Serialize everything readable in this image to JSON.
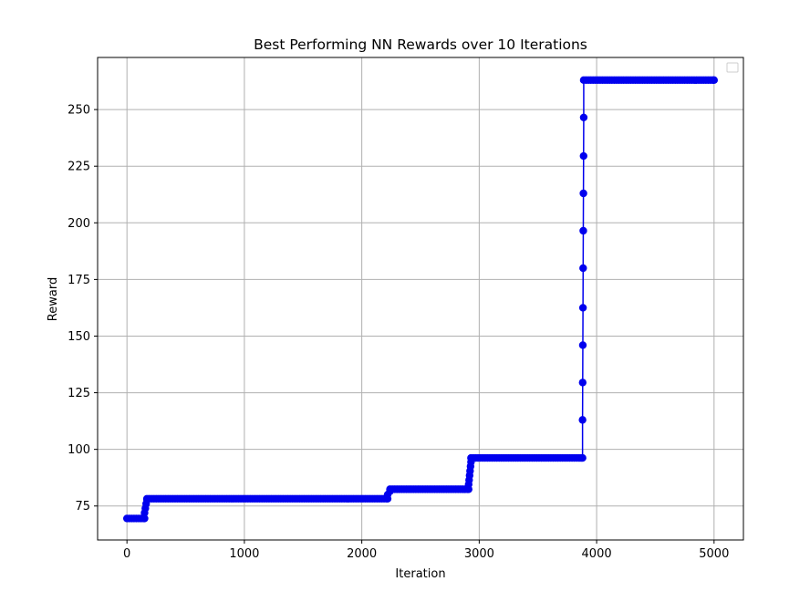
{
  "chart_data": {
    "type": "line",
    "title": "Best Performing NN Rewards over 10 Iterations",
    "xlabel": "Iteration",
    "ylabel": "Reward",
    "xlim": [
      -250,
      5250
    ],
    "ylim": [
      60,
      273
    ],
    "x_ticks": [
      0,
      1000,
      2000,
      3000,
      4000,
      5000
    ],
    "y_ticks": [
      75,
      100,
      125,
      150,
      175,
      200,
      225,
      250
    ],
    "grid": true,
    "legend": {
      "placement": "top-right",
      "entries": []
    },
    "series": [
      {
        "color": "#0000ee",
        "marker": "circle",
        "segments": [
          {
            "x_start": 0,
            "x_end": 150,
            "y": 69.5
          },
          {
            "x_start": 150,
            "x_end": 170,
            "y_values": [
              72,
              74,
              76,
              78
            ]
          },
          {
            "x_start": 170,
            "x_end": 2220,
            "y": 78.2
          },
          {
            "x_start": 2220,
            "x_end": 2240,
            "y_values": [
              80,
              81.5
            ]
          },
          {
            "x_start": 2240,
            "x_end": 2910,
            "y": 82.4
          },
          {
            "x_start": 2910,
            "x_end": 2930,
            "y_values": [
              84.5,
              86.5,
              88.5,
              90.5,
              92.5,
              94.5
            ]
          },
          {
            "x_start": 2930,
            "x_end": 3880,
            "y": 96.2
          },
          {
            "x_start": 3880,
            "x_end": 3890,
            "y_values": [
              113,
              129.5,
              146,
              162.5,
              180,
              196.5,
              213,
              229.5,
              246.5
            ]
          },
          {
            "x_start": 3890,
            "x_end": 5000,
            "y": 263
          }
        ]
      }
    ]
  }
}
